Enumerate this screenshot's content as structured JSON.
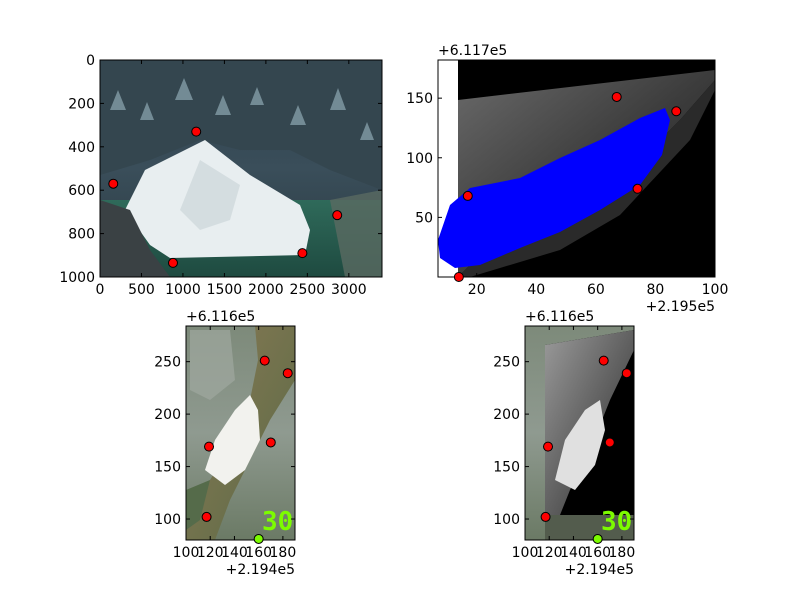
{
  "chart_data": [
    {
      "type": "scatter",
      "panel": "top-left",
      "title": "",
      "xlabel": "",
      "ylabel": "",
      "xlim": [
        0,
        3400
      ],
      "ylim": [
        1000,
        0
      ],
      "xticks": [
        0,
        500,
        1000,
        1500,
        2000,
        2500,
        3000
      ],
      "yticks": [
        0,
        200,
        400,
        600,
        800,
        1000
      ],
      "x_offset_label": "",
      "y_offset_label": "",
      "background": "oblique aerial photo of snowy river bar",
      "points": [
        {
          "x": 1160,
          "y": 330
        },
        {
          "x": 160,
          "y": 570
        },
        {
          "x": 2860,
          "y": 715
        },
        {
          "x": 2440,
          "y": 890
        },
        {
          "x": 880,
          "y": 935
        }
      ]
    },
    {
      "type": "scatter",
      "panel": "top-right",
      "title": "",
      "xlabel": "",
      "ylabel": "",
      "xlim": [
        7,
        100
      ],
      "ylim": [
        0,
        182
      ],
      "xticks": [
        20,
        40,
        60,
        80,
        100
      ],
      "yticks": [
        50,
        100,
        150
      ],
      "x_offset_label": "+2.195e5",
      "y_offset_label": "+6.117e5",
      "background": "orthorectified grayscale image with blue classified region",
      "points": [
        {
          "x": 67,
          "y": 151
        },
        {
          "x": 87,
          "y": 139
        },
        {
          "x": 74,
          "y": 74
        },
        {
          "x": 17,
          "y": 68
        },
        {
          "x": 14,
          "y": 0
        }
      ]
    },
    {
      "type": "scatter",
      "panel": "bottom-left",
      "title": "",
      "xlabel": "",
      "ylabel": "",
      "xlim": [
        100,
        190
      ],
      "ylim": [
        80,
        284
      ],
      "xticks": [
        100,
        120,
        140,
        160,
        180
      ],
      "yticks": [
        100,
        150,
        200,
        250
      ],
      "x_offset_label": "+2.194e5",
      "y_offset_label": "+6.116e5",
      "background": "orthophoto of river bar",
      "overlay_text": "30",
      "points": [
        {
          "x": 165,
          "y": 251
        },
        {
          "x": 184,
          "y": 239
        },
        {
          "x": 119,
          "y": 169
        },
        {
          "x": 170,
          "y": 173
        },
        {
          "x": 117,
          "y": 102
        }
      ],
      "extra_marker": {
        "x": 160,
        "y": 81,
        "color": "#7cfc00"
      }
    },
    {
      "type": "scatter",
      "panel": "bottom-right",
      "title": "",
      "xlabel": "",
      "ylabel": "",
      "xlim": [
        100,
        190
      ],
      "ylim": [
        80,
        284
      ],
      "xticks": [
        100,
        120,
        140,
        160,
        180
      ],
      "yticks": [
        100,
        150,
        200,
        250
      ],
      "x_offset_label": "+2.194e5",
      "y_offset_label": "+6.116e5",
      "background": "orthophoto with grayscale reprojected overlay",
      "overlay_text": "30",
      "points": [
        {
          "x": 165,
          "y": 251
        },
        {
          "x": 184,
          "y": 239
        },
        {
          "x": 119,
          "y": 169
        },
        {
          "x": 170,
          "y": 173
        },
        {
          "x": 117,
          "y": 102
        }
      ],
      "extra_marker": {
        "x": 160,
        "y": 81,
        "color": "#7cfc00"
      }
    }
  ],
  "colors": {
    "marker": "#ff0000",
    "marker_edge": "#000000",
    "classified_region": "#0000ff",
    "overlay_text": "#7cfc00"
  }
}
